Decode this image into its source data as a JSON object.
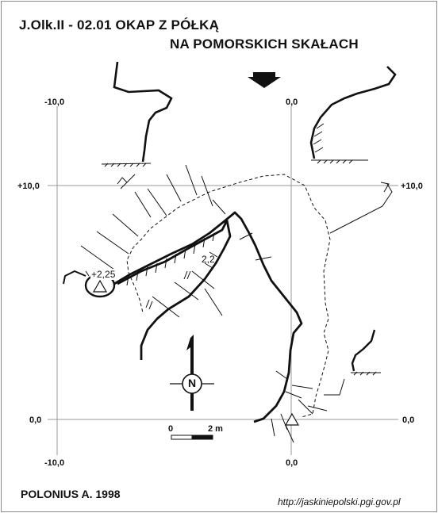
{
  "title": {
    "line1": "J.Olk.II - 02.01  OKAP Z PÓŁKĄ",
    "line2": "NA POMORSKICH SKAŁACH"
  },
  "grid_labels": {
    "left_top": "-10,0",
    "right_top": "0,0",
    "left_mid": "+10,0",
    "right_mid": "+10,0",
    "left_bottom": "0,0",
    "right_bottom": "0,0",
    "bottom_left": "-10,0",
    "bottom_right": "0,0"
  },
  "spot_heights": {
    "niche": "+2,25",
    "shelf": "2,2"
  },
  "scale": {
    "start": "0",
    "end": "2 m"
  },
  "compass_letter": "N",
  "author": "POLONIUS A. 1998",
  "source_url": "http://jaskiniepolski.pgi.gov.pl",
  "colors": {
    "ink": "#111111",
    "grid": "#9a9a9a",
    "background": "#ffffff"
  }
}
